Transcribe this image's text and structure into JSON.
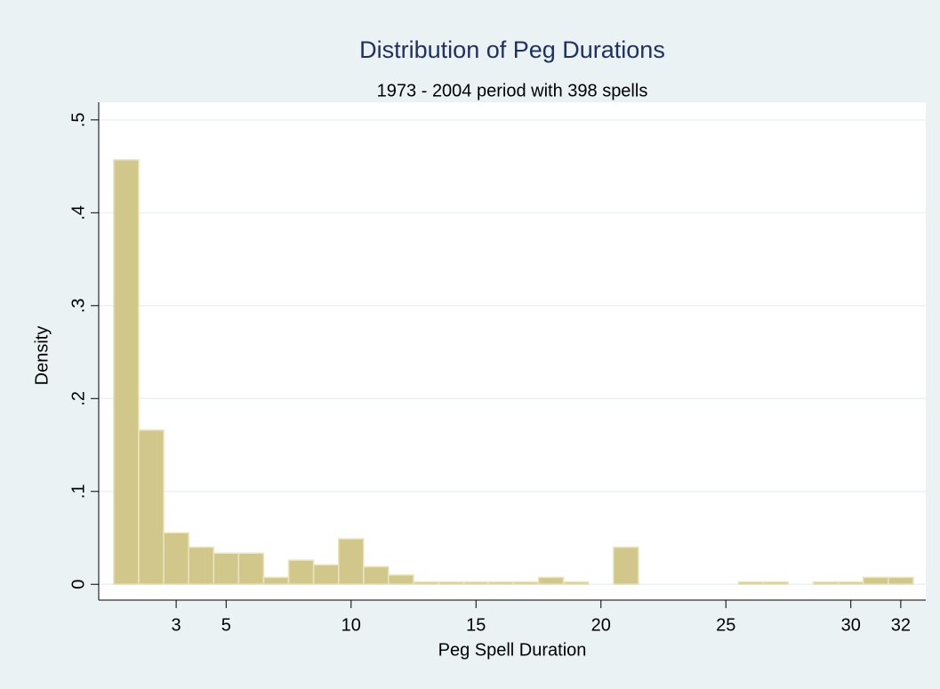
{
  "chart_data": {
    "type": "histogram",
    "title": "Distribution of Peg Durations",
    "subtitle": "1973 - 2004 period with 398 spells",
    "x_label": "Peg Spell Duration",
    "y_label": "Density",
    "bins": [
      0.5,
      1.5,
      2.5,
      3.5,
      4.5,
      5.5,
      6.5,
      7.5,
      8.5,
      9.5,
      10.5,
      11.5,
      12.5,
      13.5,
      14.5,
      15.5,
      16.5,
      17.5,
      18.5,
      19.5,
      20.5,
      21.5,
      22.5,
      23.5,
      24.5,
      25.5,
      26.5,
      27.5,
      28.5,
      29.5,
      30.5,
      31.5,
      32.5
    ],
    "values": [
      0.457,
      0.166,
      0.0555,
      0.04,
      0.0335,
      0.0335,
      0.0075,
      0.026,
      0.021,
      0.049,
      0.019,
      0.01,
      0.0025,
      0.0025,
      0.0025,
      0.0025,
      0.0025,
      0.0075,
      0.0025,
      0,
      0.04,
      0,
      0,
      0,
      0,
      0.0025,
      0.0025,
      0,
      0.0025,
      0.0025,
      0.0075,
      0.0075
    ],
    "color": "#d2c78b",
    "xlim": [
      -0.1,
      33
    ],
    "ylim": [
      -0.017,
      0.519
    ],
    "xticks": [
      3,
      5,
      10,
      15,
      20,
      25,
      30,
      32
    ],
    "yticks": [
      {
        "value": 0,
        "label": "0"
      },
      {
        "value": 0.1,
        "label": ".1"
      },
      {
        "value": 0.2,
        "label": ".2"
      },
      {
        "value": 0.3,
        "label": ".3"
      },
      {
        "value": 0.4,
        "label": ".4"
      },
      {
        "value": 0.5,
        "label": ".5"
      }
    ],
    "grid": true
  }
}
